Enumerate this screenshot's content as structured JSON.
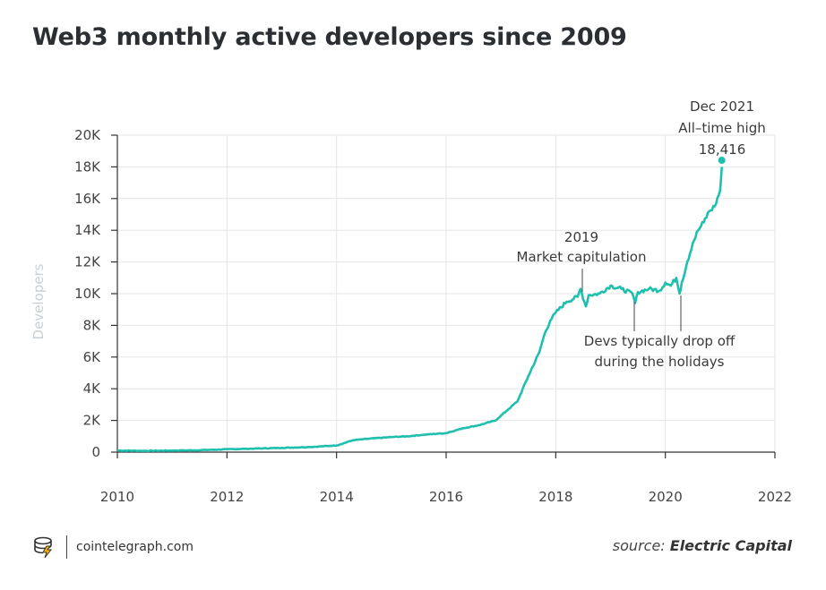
{
  "title": "Web3 monthly active developers since 2009",
  "footer": {
    "brand": "cointelegraph.com",
    "source_prefix": "source:",
    "source_name": "Electric Capital"
  },
  "colors": {
    "series": "#1fbfae",
    "grid": "#e6e6e6",
    "axis": "#333333"
  },
  "chart_data": {
    "type": "line",
    "title": "Web3 monthly active developers since 2009",
    "xlabel": "",
    "ylabel": "Developers",
    "xlim": [
      2010,
      2022
    ],
    "ylim": [
      0,
      20000
    ],
    "x_ticks": [
      2010,
      2012,
      2014,
      2016,
      2018,
      2020,
      2022
    ],
    "x_tick_labels": [
      "2010",
      "2012",
      "2014",
      "2016",
      "2018",
      "2020",
      "2022"
    ],
    "y_ticks": [
      0,
      2000,
      4000,
      6000,
      8000,
      10000,
      12000,
      14000,
      16000,
      18000,
      20000
    ],
    "y_tick_labels": [
      "0",
      "2K",
      "4K",
      "6K",
      "8K",
      "10K",
      "12K",
      "14K",
      "16K",
      "18K",
      "20K"
    ],
    "grid": true,
    "series": [
      {
        "name": "",
        "x": [
          2010.0,
          2010.5,
          2011.0,
          2011.5,
          2012.0,
          2012.5,
          2013.0,
          2013.5,
          2013.9,
          2014.0,
          2014.3,
          2014.6,
          2015.0,
          2015.3,
          2015.6,
          2016.0,
          2016.3,
          2016.6,
          2016.9,
          2017.1,
          2017.3,
          2017.5,
          2017.7,
          2017.8,
          2017.9,
          2018.0,
          2018.2,
          2018.4,
          2018.45,
          2018.55,
          2018.6,
          2018.8,
          2019.0,
          2019.2,
          2019.4,
          2019.45,
          2019.5,
          2019.7,
          2019.9,
          2020.0,
          2020.1,
          2020.2,
          2020.26,
          2020.3,
          2020.4,
          2020.5,
          2020.6,
          2020.7,
          2020.8,
          2020.9,
          2021.0,
          2021.03
        ],
        "y": [
          100,
          80,
          100,
          120,
          180,
          220,
          270,
          320,
          400,
          420,
          750,
          850,
          950,
          1000,
          1100,
          1200,
          1500,
          1700,
          2000,
          2600,
          3200,
          4800,
          6300,
          7500,
          8300,
          8800,
          9500,
          9800,
          10300,
          9200,
          9900,
          10000,
          10500,
          10300,
          10000,
          9400,
          10100,
          10300,
          10200,
          10700,
          10500,
          11000,
          10000,
          10700,
          12000,
          13200,
          14000,
          14500,
          15200,
          15500,
          16500,
          18000
        ]
      }
    ],
    "highlight": {
      "x": 2021.03,
      "y": 18416
    },
    "annotations": [
      {
        "text": [
          "Dec 2021",
          "All–time high",
          "18,416"
        ]
      },
      {
        "text": [
          "2019",
          "Market capitulation"
        ]
      },
      {
        "text": [
          "Devs typically drop off",
          "during the holidays"
        ]
      }
    ]
  }
}
